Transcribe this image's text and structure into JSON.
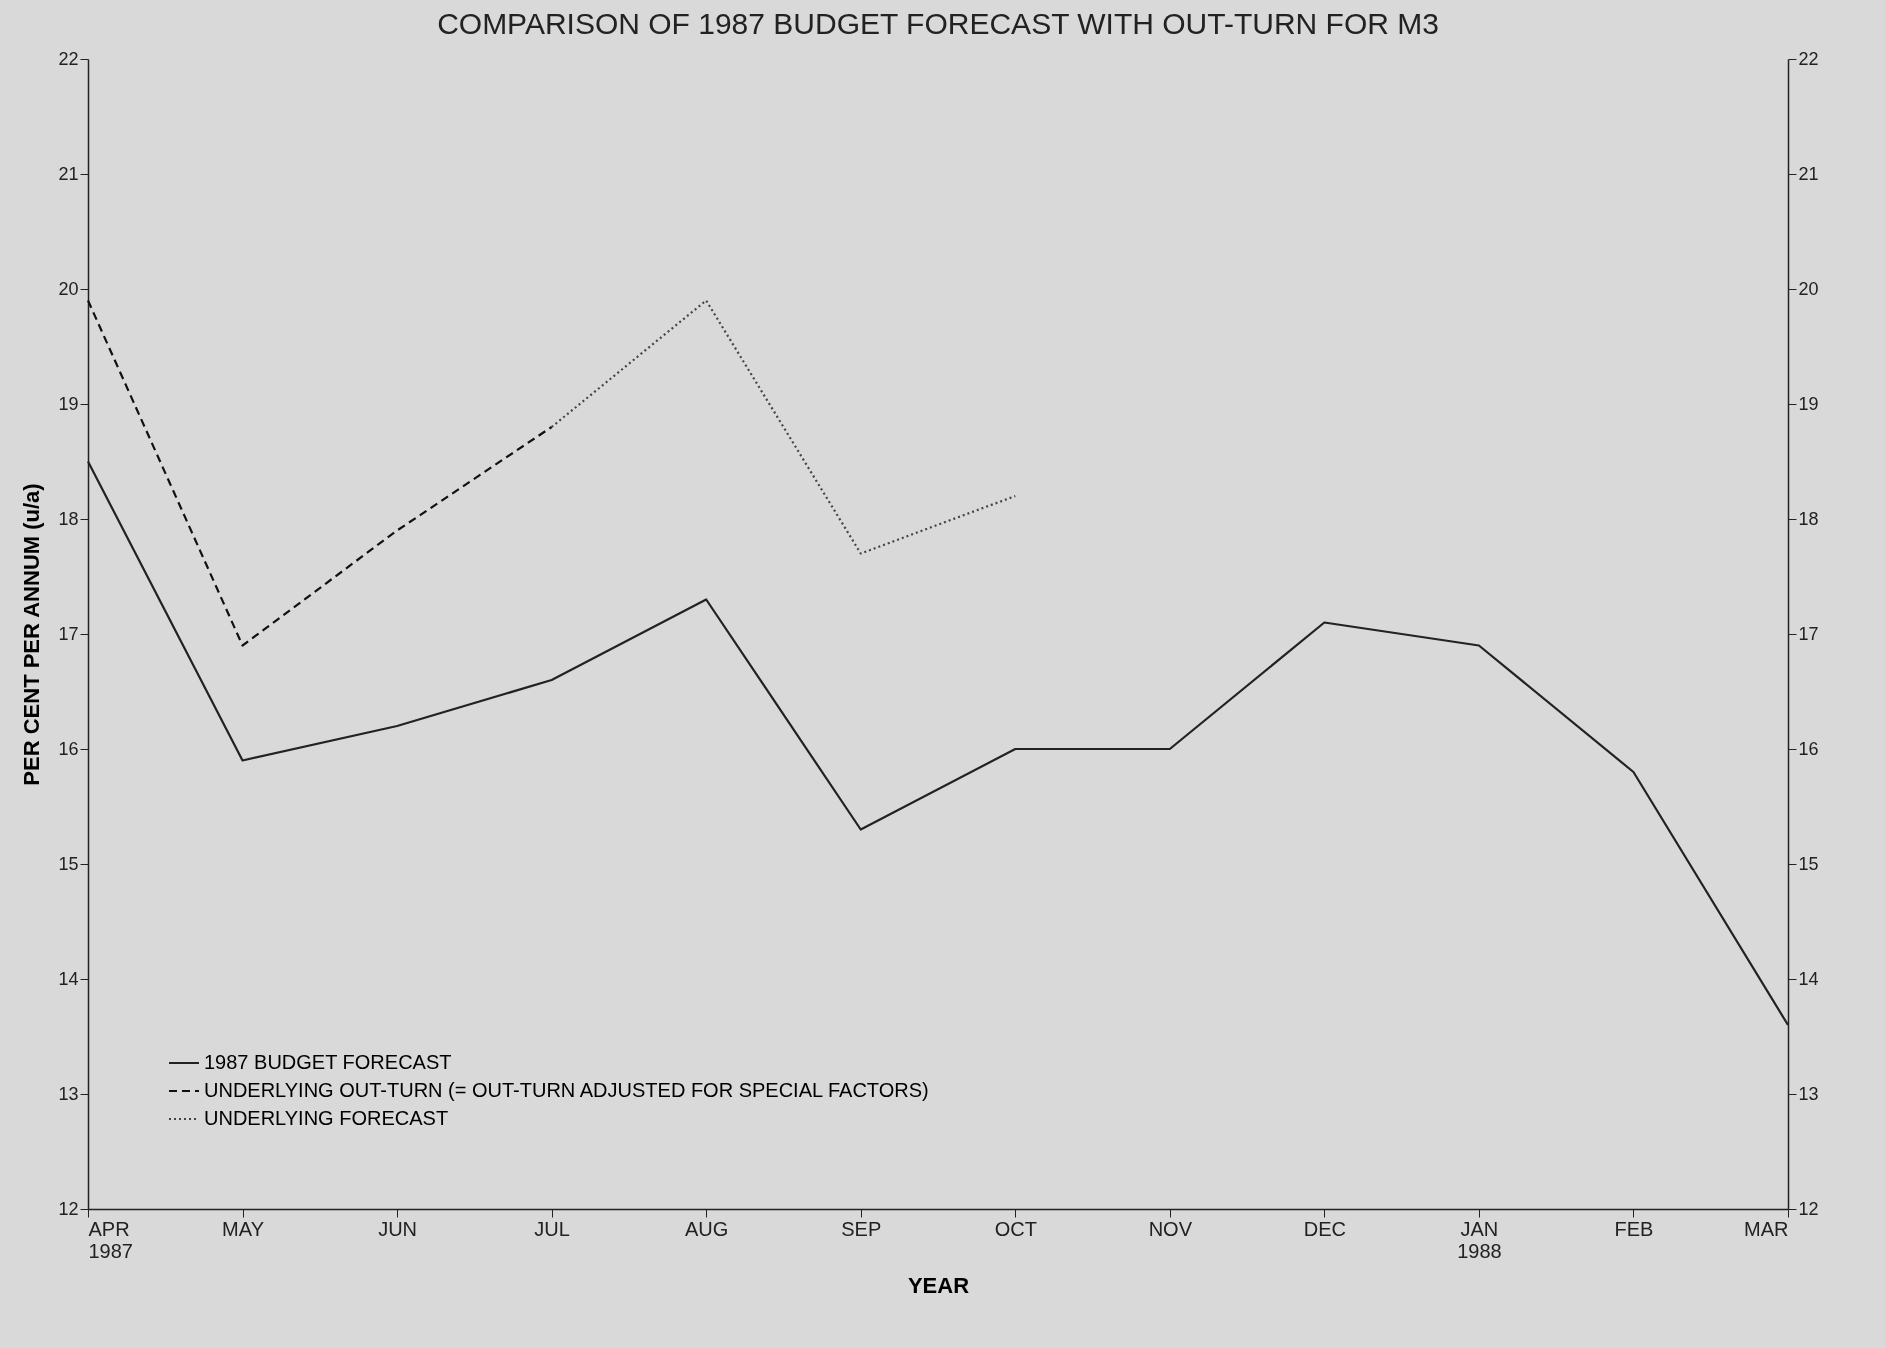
{
  "chart_data": {
    "type": "line",
    "title": "COMPARISON OF 1987 BUDGET FORECAST WITH OUT-TURN FOR M3",
    "xlabel": "YEAR",
    "ylabel": "PER CENT PER ANNUM (u/a)",
    "categories": [
      "APR\n1987",
      "MAY",
      "JUN",
      "JUL",
      "AUG",
      "SEP",
      "OCT",
      "NOV",
      "DEC",
      "JAN\n1988",
      "FEB",
      "MAR"
    ],
    "series": [
      {
        "name": "1987 BUDGET FORECAST",
        "color": "#222222",
        "line_style": "solid",
        "values": [
          18.5,
          15.9,
          16.2,
          16.6,
          17.3,
          15.3,
          16.0,
          16.0,
          17.1,
          16.9,
          15.8,
          13.6
        ]
      },
      {
        "name": "UNDERLYING OUT-TURN (= OUT-TURN ADJUSTED FOR SPECIAL FACTORS)",
        "color": "#111111",
        "line_style": "dashed",
        "values": [
          19.9,
          16.9,
          17.9,
          18.8,
          null,
          null,
          null,
          null,
          null,
          null,
          null,
          null
        ]
      },
      {
        "name": "UNDERLYING FORECAST",
        "color": "#444444",
        "line_style": "dotted",
        "values": [
          null,
          null,
          null,
          18.8,
          19.9,
          17.7,
          18.2,
          null,
          null,
          null,
          null,
          null
        ]
      }
    ],
    "ylim": [
      12,
      22
    ],
    "yticks": [
      12,
      13,
      14,
      15,
      16,
      17,
      18,
      19,
      20,
      21,
      22
    ],
    "y2lim": [
      12,
      22
    ],
    "y2ticks": [
      12,
      13,
      14,
      15,
      16,
      17,
      18,
      19,
      20,
      21,
      22
    ],
    "legend": "bottom left",
    "marker": "none"
  }
}
